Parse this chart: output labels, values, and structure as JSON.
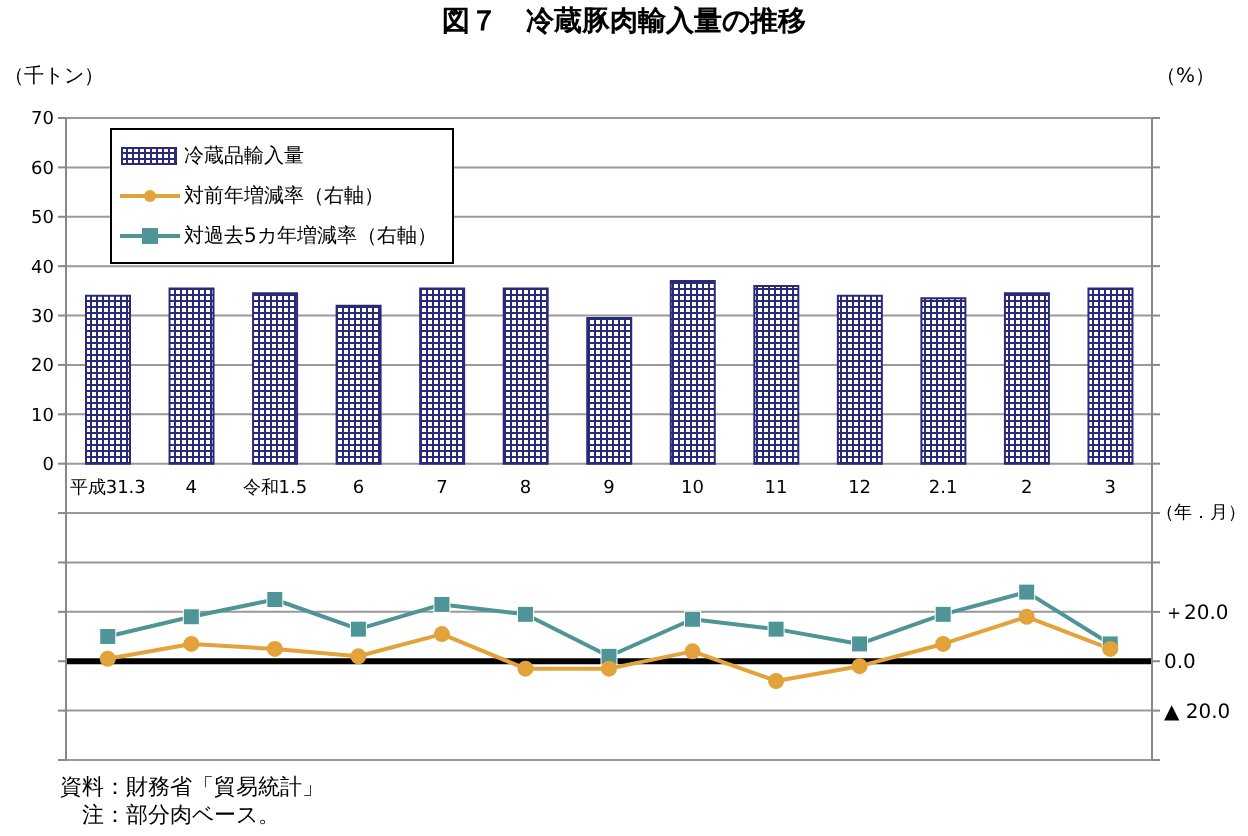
{
  "chart_data": {
    "type": "bar",
    "title": "図７　冷蔵豚肉輸入量の推移",
    "ylabel": "（千トン）",
    "y2label": "（%）",
    "xlabel": "（年．月）",
    "categories": [
      "平成31.3",
      "4",
      "令和1.5",
      "6",
      "7",
      "8",
      "9",
      "10",
      "11",
      "12",
      "2.1",
      "2",
      "3"
    ],
    "series": [
      {
        "name": "冷蔵品輸入量",
        "color": "#2a2a7a",
        "values": [
          34,
          35.5,
          34.5,
          32,
          35.5,
          35.5,
          29.5,
          37,
          36,
          34,
          33.5,
          34.5,
          35.5
        ]
      },
      {
        "name": "対前年増減率（右軸）",
        "type": "line",
        "axis": "y2",
        "marker": "circle",
        "color": "#e3a23a",
        "values": [
          1,
          7,
          5,
          2,
          11,
          -3,
          -3,
          4,
          -8,
          -2,
          7,
          18,
          5
        ]
      },
      {
        "name": "対過去5カ年増減率（右軸）",
        "type": "line",
        "axis": "y2",
        "marker": "square",
        "color": "#4f9496",
        "values": [
          10,
          18,
          25,
          13,
          23,
          19,
          2,
          17,
          13,
          7,
          19,
          28,
          7
        ]
      }
    ],
    "ylim": [
      -60,
      70
    ],
    "yticks": [
      {
        "value": -60,
        "label": null
      },
      {
        "value": -50,
        "label": null
      },
      {
        "value": -40,
        "label": null
      },
      {
        "value": -30,
        "label": null
      },
      {
        "value": -20,
        "label": null
      },
      {
        "value": -10,
        "label": null
      },
      0,
      10,
      20,
      30,
      40,
      50,
      60,
      70
    ],
    "y2lim": [
      -40,
      220
    ],
    "y2ticks": [
      {
        "value": -40,
        "label": null
      },
      {
        "value": -20,
        "label": "▲ 20.0"
      },
      {
        "value": 0,
        "label": "0.0"
      },
      {
        "value": 20,
        "label": "＋20.0"
      },
      {
        "value": 40,
        "label": null
      },
      {
        "value": 60,
        "label": null
      },
      {
        "value": 80,
        "label": null
      },
      {
        "value": 100,
        "label": null
      },
      {
        "value": 120,
        "label": null
      },
      {
        "value": 140,
        "label": null
      },
      {
        "value": 160,
        "label": null
      },
      {
        "value": 180,
        "label": null
      },
      {
        "value": 200,
        "label": null
      },
      {
        "value": 220,
        "label": null
      }
    ],
    "ref_lines": [
      {
        "axis": "y2",
        "value": 0,
        "color": "#000000"
      }
    ],
    "grid": "y",
    "legend": "top left",
    "line_style": "solid",
    "annotations": [
      "資料：財務省「貿易統計」",
      "　注：部分肉ベース。"
    ]
  }
}
